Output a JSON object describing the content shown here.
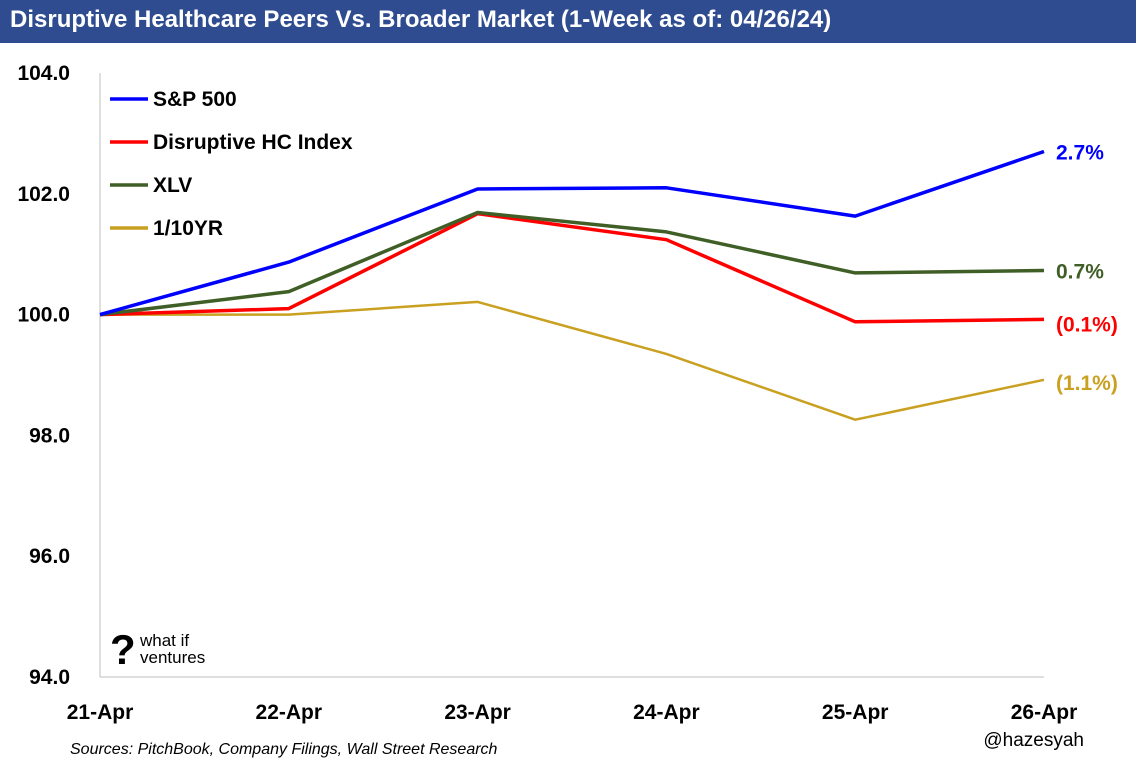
{
  "header": {
    "title": "Disruptive Healthcare Peers Vs. Broader Market (1-Week as of: 04/26/24)"
  },
  "footer": {
    "source": "Sources: PitchBook, Company Filings, Wall Street Research",
    "handle": "@hazesyah"
  },
  "logo": {
    "mark": "?",
    "line1": "what if",
    "line2": "ventures"
  },
  "chart_data": {
    "type": "line",
    "title": "Disruptive Healthcare Peers Vs. Broader Market (1-Week as of: 04/26/24)",
    "categories": [
      "21-Apr",
      "22-Apr",
      "23-Apr",
      "24-Apr",
      "25-Apr",
      "26-Apr"
    ],
    "ylim": [
      94.0,
      104.0
    ],
    "yticks": [
      "94.0",
      "96.0",
      "98.0",
      "100.0",
      "102.0",
      "104.0"
    ],
    "grid": false,
    "legend_position": "top-left",
    "series": [
      {
        "name": "S&P 500",
        "color": "#0000ff",
        "values": [
          100.0,
          100.87,
          102.08,
          102.1,
          101.63,
          102.7
        ],
        "end_label": "2.7%"
      },
      {
        "name": "Disruptive HC Index",
        "color": "#ff0000",
        "values": [
          100.0,
          100.1,
          101.67,
          101.24,
          99.88,
          99.92
        ],
        "end_label": "(0.1%)"
      },
      {
        "name": "XLV",
        "color": "#3f5f26",
        "values": [
          100.0,
          100.38,
          101.69,
          101.37,
          100.69,
          100.73
        ],
        "end_label": "0.7%"
      },
      {
        "name": "1/10YR",
        "color": "#c9a020",
        "values": [
          100.0,
          100.0,
          100.21,
          99.35,
          98.26,
          98.92
        ],
        "end_label": "(1.1%)"
      }
    ]
  }
}
